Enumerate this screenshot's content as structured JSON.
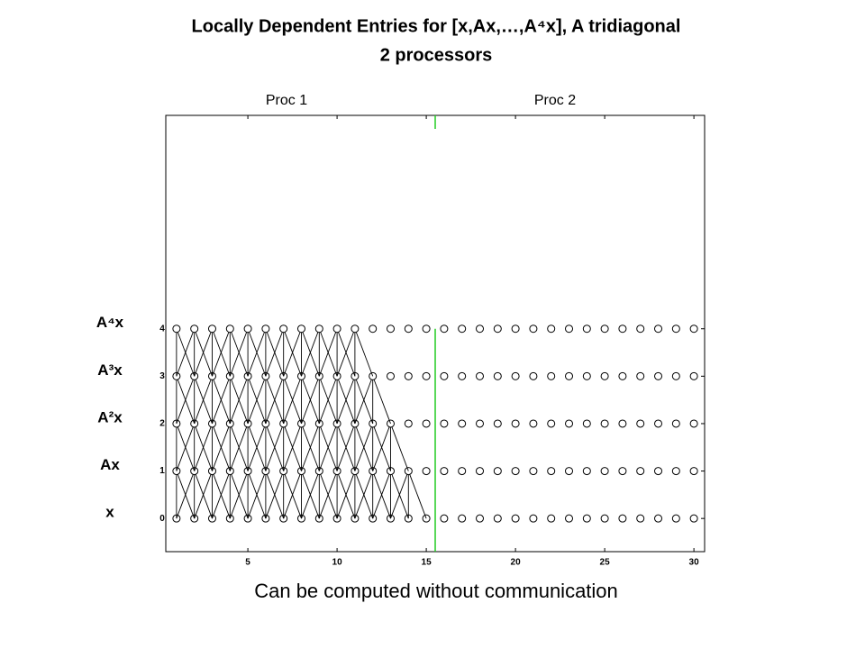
{
  "chart_data": {
    "type": "dependency",
    "title": "Locally Dependent Entries for [x,Ax,…,A⁴x], A tridiagonal",
    "subtitle": "2 processors",
    "caption": "Can be computed without communication",
    "region_labels": [
      "Proc 1",
      "Proc 2"
    ],
    "divider": 15.5,
    "divider_color": "#22cc22",
    "row_labels": [
      "x",
      "Ax",
      "A²x",
      "A³x",
      "A⁴x"
    ],
    "rows": [
      0,
      1,
      2,
      3,
      4
    ],
    "x": [
      1,
      2,
      3,
      4,
      5,
      6,
      7,
      8,
      9,
      10,
      11,
      12,
      13,
      14,
      15,
      16,
      17,
      18,
      19,
      20,
      21,
      22,
      23,
      24,
      25,
      26,
      27,
      28,
      29,
      30
    ],
    "local_counts": [
      15,
      14,
      13,
      12,
      11
    ],
    "xlim": [
      0.4,
      30.6
    ],
    "xticks": [
      5,
      10,
      15,
      20,
      25,
      30
    ],
    "ylim": [
      -0.7,
      8.5
    ],
    "yticks": [
      0,
      1,
      2,
      3,
      4
    ]
  }
}
